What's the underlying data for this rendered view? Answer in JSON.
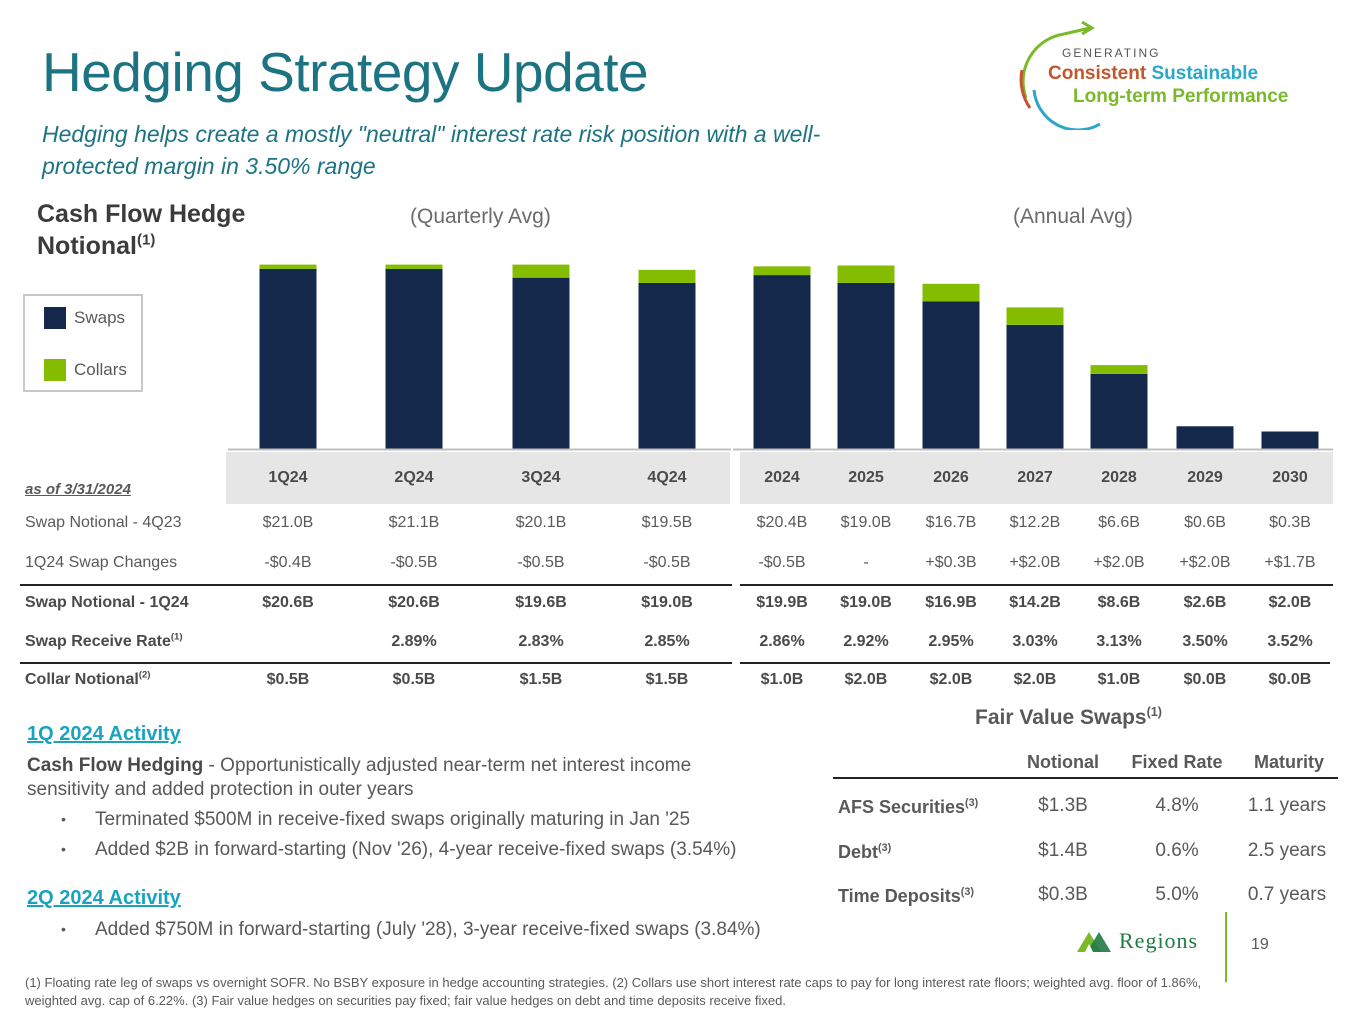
{
  "title": "Hedging Strategy Update",
  "subtitle": "Hedging helps create a mostly \"neutral\" interest rate risk position with a well-protected margin in 3.50% range",
  "logo": {
    "generating": "GENERATING",
    "consistent": "Consistent",
    "sustainable": "Sustainable",
    "long_term": "Long-term Performance"
  },
  "cash_flow_heading": {
    "text": "Cash Flow Hedge Notional",
    "note": "(1)"
  },
  "quarterly_label": "(Quarterly Avg)",
  "annual_label": "(Annual Avg)",
  "legend": {
    "swaps": "Swaps",
    "collars": "Collars"
  },
  "colors": {
    "swaps": "#14284b",
    "collars": "#84bd00",
    "accent": "#1c7381",
    "link": "#1aa3bf"
  },
  "chart_data": {
    "type": "bar",
    "stacked": true,
    "title": "Cash Flow Hedge Notional",
    "categories": [
      "1Q24",
      "2Q24",
      "3Q24",
      "4Q24",
      "2024",
      "2025",
      "2026",
      "2027",
      "2028",
      "2029",
      "2030"
    ],
    "series": [
      {
        "name": "Swaps",
        "values": [
          20.6,
          20.6,
          19.6,
          19.0,
          19.9,
          19.0,
          16.9,
          14.2,
          8.6,
          2.6,
          2.0
        ]
      },
      {
        "name": "Collars",
        "values": [
          0.5,
          0.5,
          1.5,
          1.5,
          1.0,
          2.0,
          2.0,
          2.0,
          1.0,
          0.0,
          0.0
        ]
      }
    ],
    "unit": "$B",
    "ylim": [
      0,
      21.5
    ]
  },
  "table": {
    "as_of": "as of 3/31/2024",
    "columns": [
      "1Q24",
      "2Q24",
      "3Q24",
      "4Q24",
      "2024",
      "2025",
      "2026",
      "2027",
      "2028",
      "2029",
      "2030"
    ],
    "rows": [
      {
        "label": "Swap Notional - 4Q23",
        "note": "",
        "bold": false,
        "values": [
          "$21.0B",
          "$21.1B",
          "$20.1B",
          "$19.5B",
          "$20.4B",
          "$19.0B",
          "$16.7B",
          "$12.2B",
          "$6.6B",
          "$0.6B",
          "$0.3B"
        ]
      },
      {
        "label": "1Q24 Swap Changes",
        "note": "",
        "bold": false,
        "values": [
          "-$0.4B",
          "-$0.5B",
          "-$0.5B",
          "-$0.5B",
          "-$0.5B",
          "-",
          "+$0.3B",
          "+$2.0B",
          "+$2.0B",
          "+$2.0B",
          "+$1.7B"
        ]
      },
      {
        "label": "Swap Notional - 1Q24",
        "note": "",
        "bold": true,
        "values": [
          "$20.6B",
          "$20.6B",
          "$19.6B",
          "$19.0B",
          "$19.9B",
          "$19.0B",
          "$16.9B",
          "$14.2B",
          "$8.6B",
          "$2.6B",
          "$2.0B"
        ]
      },
      {
        "label": "Swap Receive Rate",
        "note": "(1)",
        "bold": true,
        "values": [
          "",
          "2.89%",
          "2.83%",
          "2.85%",
          "2.86%",
          "2.92%",
          "2.95%",
          "3.03%",
          "3.13%",
          "3.50%",
          "3.52%"
        ]
      },
      {
        "label": "Collar Notional",
        "note": "(2)",
        "bold": true,
        "values": [
          "$0.5B",
          "$0.5B",
          "$1.5B",
          "$1.5B",
          "$1.0B",
          "$2.0B",
          "$2.0B",
          "$2.0B",
          "$1.0B",
          "$0.0B",
          "$0.0B"
        ]
      }
    ]
  },
  "activity_1q": {
    "heading": "1Q 2024 Activity",
    "lead_bold": "Cash Flow Hedging",
    "lead_text": " - Opportunistically adjusted near-term net interest income sensitivity and added protection in outer years",
    "bullets": [
      "Terminated $500M in receive-fixed swaps originally maturing in Jan '25",
      "Added $2B in forward-starting (Nov '26), 4-year receive-fixed swaps (3.54%)"
    ]
  },
  "activity_2q": {
    "heading": "2Q 2024 Activity",
    "bullets": [
      "Added $750M in forward-starting (July '28), 3-year receive-fixed swaps (3.84%)"
    ]
  },
  "fair_value": {
    "title": "Fair Value Swaps",
    "note": "(1)",
    "headers": [
      "Notional",
      "Fixed Rate",
      "Maturity"
    ],
    "rows": [
      {
        "label": "AFS Securities",
        "note": "(3)",
        "values": [
          "$1.3B",
          "4.8%",
          "1.1 years"
        ]
      },
      {
        "label": "Debt",
        "note": "(3)",
        "values": [
          "$1.4B",
          "0.6%",
          "2.5 years"
        ]
      },
      {
        "label": "Time Deposits",
        "note": "(3)",
        "values": [
          "$0.3B",
          "5.0%",
          "0.7 years"
        ]
      }
    ]
  },
  "footnote": "(1) Floating rate leg of swaps vs overnight SOFR. No BSBY exposure in hedge accounting strategies. (2) Collars use short interest rate caps to pay for long interest rate floors; weighted avg. floor of 1.86%, weighted avg. cap of 6.22%. (3) Fair value hedges on securities pay fixed; fair value hedges on debt and time deposits receive fixed.",
  "brand": "Regions",
  "page_number": "19"
}
